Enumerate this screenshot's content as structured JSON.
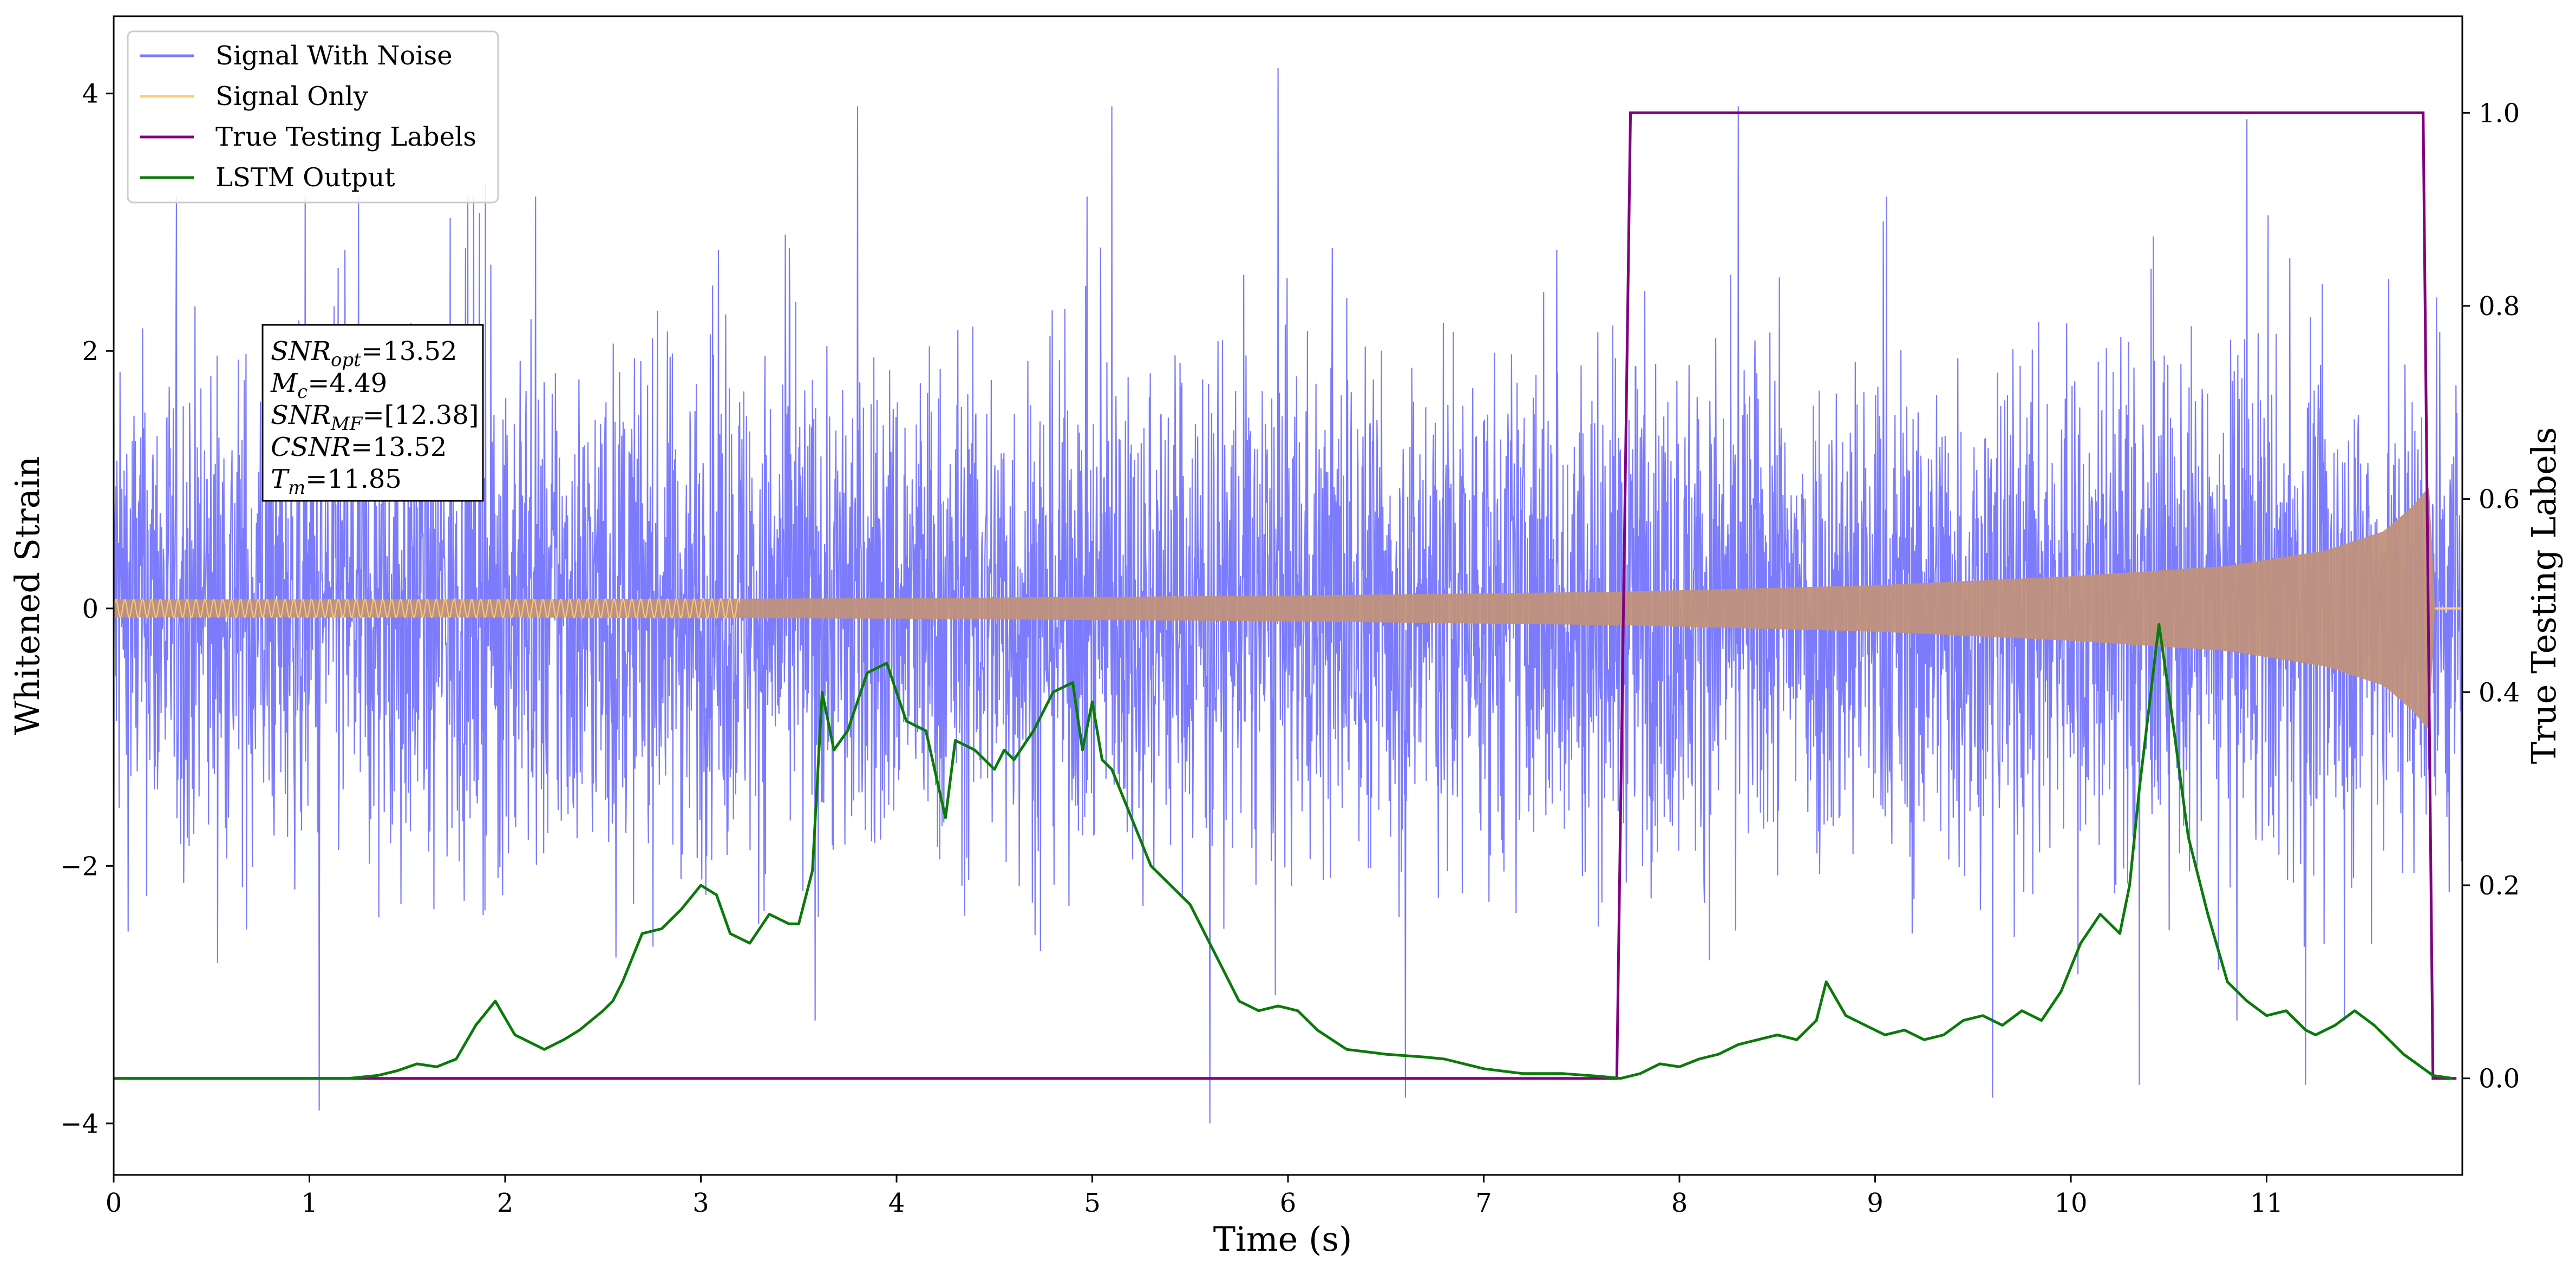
{
  "chart_data": {
    "type": "line",
    "title": "",
    "xlabel": "Time (s)",
    "ylabel_left": "Whitened Strain",
    "ylabel_right": "True Testing Labels",
    "xlim": [
      0,
      12.0
    ],
    "ylim_left": [
      -4.4,
      4.6
    ],
    "ylim_right": [
      -0.1,
      1.1
    ],
    "xticks": [
      0,
      1,
      2,
      3,
      4,
      5,
      6,
      7,
      8,
      9,
      10,
      11
    ],
    "yticks_left": [
      -4,
      -2,
      0,
      2,
      4
    ],
    "yticks_left_labels": [
      "−4",
      "−2",
      "0",
      "2",
      "4"
    ],
    "yticks_right": [
      0.0,
      0.2,
      0.4,
      0.6,
      0.8,
      1.0
    ],
    "yticks_right_labels": [
      "0.0",
      "0.2",
      "0.4",
      "0.6",
      "0.8",
      "1.0"
    ],
    "grid": false,
    "legend_position": "top-left",
    "colors": {
      "signal_with_noise": "#7b7bfb",
      "signal_only": "#ffcc77",
      "signal_overlap": "#c0917c",
      "true_labels": "#800080",
      "lstm_output": "#0a7a0a"
    },
    "series": [
      {
        "name": "Signal With Noise",
        "axis": "left",
        "note_values": "dense noise trace, approx. ±2.5 typical amplitude",
        "peaks_upper": [
          [
            1.9,
            3.3
          ],
          [
            3.8,
            3.9
          ],
          [
            5.1,
            3.9
          ],
          [
            5.95,
            4.2
          ],
          [
            8.3,
            3.9
          ],
          [
            10.9,
            3.8
          ]
        ],
        "peaks_lower": [
          [
            1.05,
            -3.9
          ],
          [
            5.6,
            -4.0
          ],
          [
            6.6,
            -3.8
          ],
          [
            9.6,
            -3.8
          ],
          [
            10.35,
            -3.7
          ],
          [
            11.2,
            -3.7
          ]
        ]
      },
      {
        "name": "Signal Only",
        "axis": "left",
        "envelope": [
          [
            0.0,
            0.07
          ],
          [
            2.0,
            0.07
          ],
          [
            4.0,
            0.08
          ],
          [
            6.0,
            0.1
          ],
          [
            7.7,
            0.13
          ],
          [
            9.0,
            0.18
          ],
          [
            10.0,
            0.25
          ],
          [
            10.8,
            0.33
          ],
          [
            11.3,
            0.45
          ],
          [
            11.6,
            0.6
          ],
          [
            11.75,
            0.8
          ],
          [
            11.83,
            0.95
          ],
          [
            11.86,
            0.0
          ]
        ]
      },
      {
        "name": "True Testing Labels",
        "axis": "right",
        "x": [
          0.0,
          7.68,
          7.75,
          11.8,
          11.85,
          11.97
        ],
        "y": [
          0.0,
          0.0,
          1.0,
          1.0,
          0.0,
          0.0
        ]
      },
      {
        "name": "LSTM Output",
        "axis": "right",
        "x": [
          0.0,
          0.3,
          0.6,
          0.9,
          1.2,
          1.35,
          1.45,
          1.55,
          1.65,
          1.75,
          1.85,
          1.95,
          2.05,
          2.15,
          2.2,
          2.3,
          2.38,
          2.5,
          2.55,
          2.6,
          2.7,
          2.8,
          2.9,
          3.0,
          3.08,
          3.15,
          3.25,
          3.35,
          3.45,
          3.5,
          3.57,
          3.62,
          3.68,
          3.75,
          3.85,
          3.95,
          4.05,
          4.15,
          4.25,
          4.3,
          4.4,
          4.5,
          4.55,
          4.6,
          4.7,
          4.8,
          4.9,
          4.95,
          5.0,
          5.05,
          5.1,
          5.2,
          5.3,
          5.4,
          5.5,
          5.6,
          5.75,
          5.85,
          5.95,
          6.05,
          6.15,
          6.3,
          6.5,
          6.7,
          6.8,
          7.0,
          7.2,
          7.4,
          7.6,
          7.7,
          7.8,
          7.9,
          8.0,
          8.1,
          8.2,
          8.3,
          8.4,
          8.5,
          8.6,
          8.7,
          8.75,
          8.85,
          8.95,
          9.05,
          9.15,
          9.25,
          9.35,
          9.45,
          9.55,
          9.65,
          9.75,
          9.85,
          9.95,
          10.05,
          10.15,
          10.25,
          10.3,
          10.35,
          10.45,
          10.5,
          10.6,
          10.7,
          10.8,
          10.9,
          11.0,
          11.1,
          11.2,
          11.25,
          11.35,
          11.45,
          11.55,
          11.7,
          11.85,
          11.95
        ],
        "y": [
          0.0,
          0.0,
          0.0,
          0.0,
          0.0,
          0.003,
          0.008,
          0.015,
          0.012,
          0.02,
          0.055,
          0.08,
          0.045,
          0.035,
          0.03,
          0.04,
          0.05,
          0.07,
          0.08,
          0.1,
          0.15,
          0.155,
          0.175,
          0.2,
          0.19,
          0.15,
          0.14,
          0.17,
          0.16,
          0.16,
          0.215,
          0.4,
          0.34,
          0.36,
          0.42,
          0.43,
          0.37,
          0.36,
          0.27,
          0.35,
          0.34,
          0.32,
          0.34,
          0.33,
          0.36,
          0.4,
          0.41,
          0.34,
          0.39,
          0.33,
          0.32,
          0.27,
          0.22,
          0.2,
          0.18,
          0.14,
          0.08,
          0.07,
          0.075,
          0.07,
          0.05,
          0.03,
          0.025,
          0.022,
          0.02,
          0.01,
          0.005,
          0.005,
          0.002,
          0.0,
          0.005,
          0.015,
          0.012,
          0.02,
          0.025,
          0.035,
          0.04,
          0.045,
          0.04,
          0.06,
          0.1,
          0.065,
          0.055,
          0.045,
          0.05,
          0.04,
          0.045,
          0.06,
          0.065,
          0.055,
          0.07,
          0.06,
          0.09,
          0.14,
          0.17,
          0.15,
          0.2,
          0.3,
          0.47,
          0.4,
          0.25,
          0.17,
          0.1,
          0.08,
          0.065,
          0.07,
          0.05,
          0.045,
          0.055,
          0.07,
          0.055,
          0.025,
          0.003,
          0.0
        ]
      }
    ],
    "annotation": {
      "lines": [
        {
          "sym": "SNR",
          "sub": "opt",
          "val": "=13.52"
        },
        {
          "sym": "M",
          "sub": "c",
          "val": "=4.49"
        },
        {
          "sym": "SNR",
          "sub": "MF",
          "val": "=[12.38]"
        },
        {
          "sym": "CSNR",
          "sub": "",
          "val": "=13.52"
        },
        {
          "sym": "T",
          "sub": "m",
          "val": "=11.85"
        }
      ]
    }
  }
}
